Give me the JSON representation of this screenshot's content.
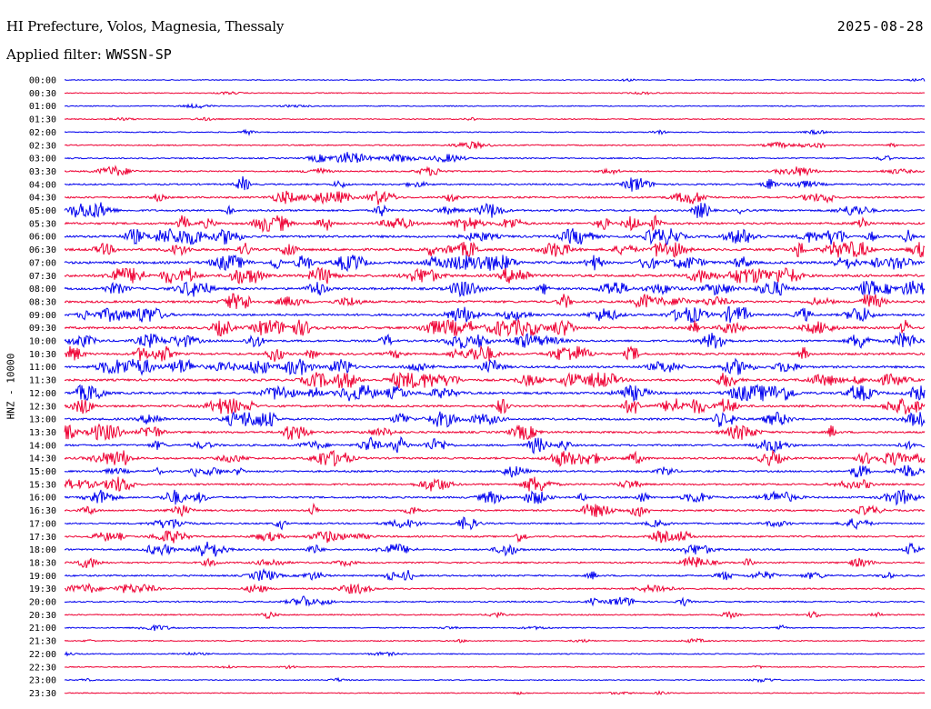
{
  "header": {
    "station": "HI Prefecture, Volos, Magnesia, Thessaly",
    "date": "2025-08-28",
    "filter_label": "Applied filter:",
    "filter_value": "WWSSN-SP"
  },
  "colors": {
    "even_trace": "#0000ee",
    "odd_trace": "#ee0033",
    "background": "#ffffff"
  },
  "chart_data": {
    "type": "line",
    "title": "HI Prefecture, Volos, Magnesia, Thessaly",
    "ylabel": "HNZ - 10000",
    "xlabel": "",
    "trace_interval_minutes": 30,
    "grid": false,
    "categories": [
      "00:00",
      "00:30",
      "01:00",
      "01:30",
      "02:00",
      "02:30",
      "03:00",
      "03:30",
      "04:00",
      "04:30",
      "05:00",
      "05:30",
      "06:00",
      "06:30",
      "07:00",
      "07:30",
      "08:00",
      "08:30",
      "09:00",
      "09:30",
      "10:00",
      "10:30",
      "11:00",
      "11:30",
      "12:00",
      "12:30",
      "13:00",
      "13:30",
      "14:00",
      "14:30",
      "15:00",
      "15:30",
      "16:00",
      "16:30",
      "17:00",
      "17:30",
      "18:00",
      "18:30",
      "19:00",
      "19:30",
      "20:00",
      "20:30",
      "21:00",
      "21:30",
      "22:00",
      "22:30",
      "23:00",
      "23:30"
    ],
    "series": [
      {
        "values": [
          0.9,
          1.0,
          1.1,
          1.4,
          1.5,
          2.2,
          2.6,
          3.2,
          3.8,
          4.6,
          5.2,
          5.9,
          6.8,
          7.2,
          7.4,
          7.9,
          6.7,
          6.5,
          6.2,
          6.9,
          5.8,
          6.1,
          6.4,
          6.3,
          6.8,
          5.9,
          6.1,
          5.6,
          5.0,
          5.3,
          4.7,
          4.5,
          4.9,
          4.3,
          3.7,
          4.1,
          4.4,
          3.6,
          3.9,
          3.2,
          2.9,
          2.3,
          1.8,
          1.6,
          1.5,
          1.3,
          1.2,
          1.2
        ]
      }
    ]
  }
}
